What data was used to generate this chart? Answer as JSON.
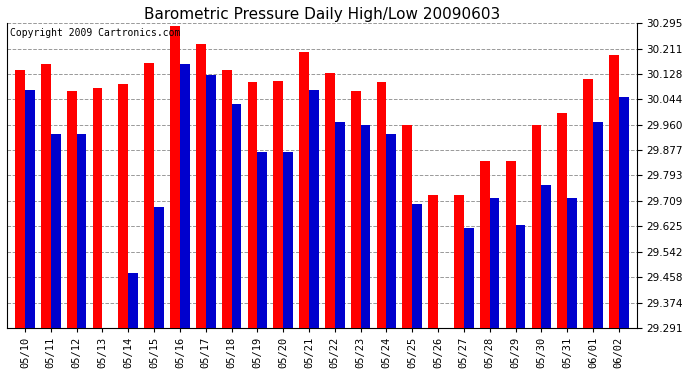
{
  "title": "Barometric Pressure Daily High/Low 20090603",
  "copyright": "Copyright 2009 Cartronics.com",
  "dates": [
    "05/10",
    "05/11",
    "05/12",
    "05/13",
    "05/14",
    "05/15",
    "05/16",
    "05/17",
    "05/18",
    "05/19",
    "05/20",
    "05/21",
    "05/22",
    "05/23",
    "05/24",
    "05/25",
    "05/26",
    "05/27",
    "05/28",
    "05/29",
    "05/30",
    "05/31",
    "06/01",
    "06/02"
  ],
  "highs": [
    30.14,
    30.16,
    30.07,
    30.08,
    30.095,
    30.165,
    30.285,
    30.225,
    30.14,
    30.1,
    30.105,
    30.2,
    30.13,
    30.07,
    30.1,
    29.96,
    29.73,
    29.73,
    29.84,
    29.84,
    29.96,
    30.0,
    30.11,
    30.19
  ],
  "lows": [
    30.075,
    29.93,
    29.93,
    29.291,
    29.47,
    29.69,
    30.16,
    30.125,
    30.03,
    29.87,
    29.87,
    30.075,
    29.97,
    29.96,
    29.93,
    29.7,
    29.291,
    29.62,
    29.72,
    29.63,
    29.76,
    29.72,
    29.97,
    30.05
  ],
  "ylim_min": 29.291,
  "ylim_max": 30.295,
  "yticks": [
    29.291,
    29.374,
    29.458,
    29.542,
    29.625,
    29.709,
    29.793,
    29.877,
    29.96,
    30.044,
    30.128,
    30.211,
    30.295
  ],
  "high_color": "#ff0000",
  "low_color": "#0000cd",
  "bg_color": "#ffffff",
  "grid_color": "#999999",
  "title_fontsize": 11,
  "copyright_fontsize": 7,
  "tick_fontsize": 7.5,
  "bar_width": 0.38
}
